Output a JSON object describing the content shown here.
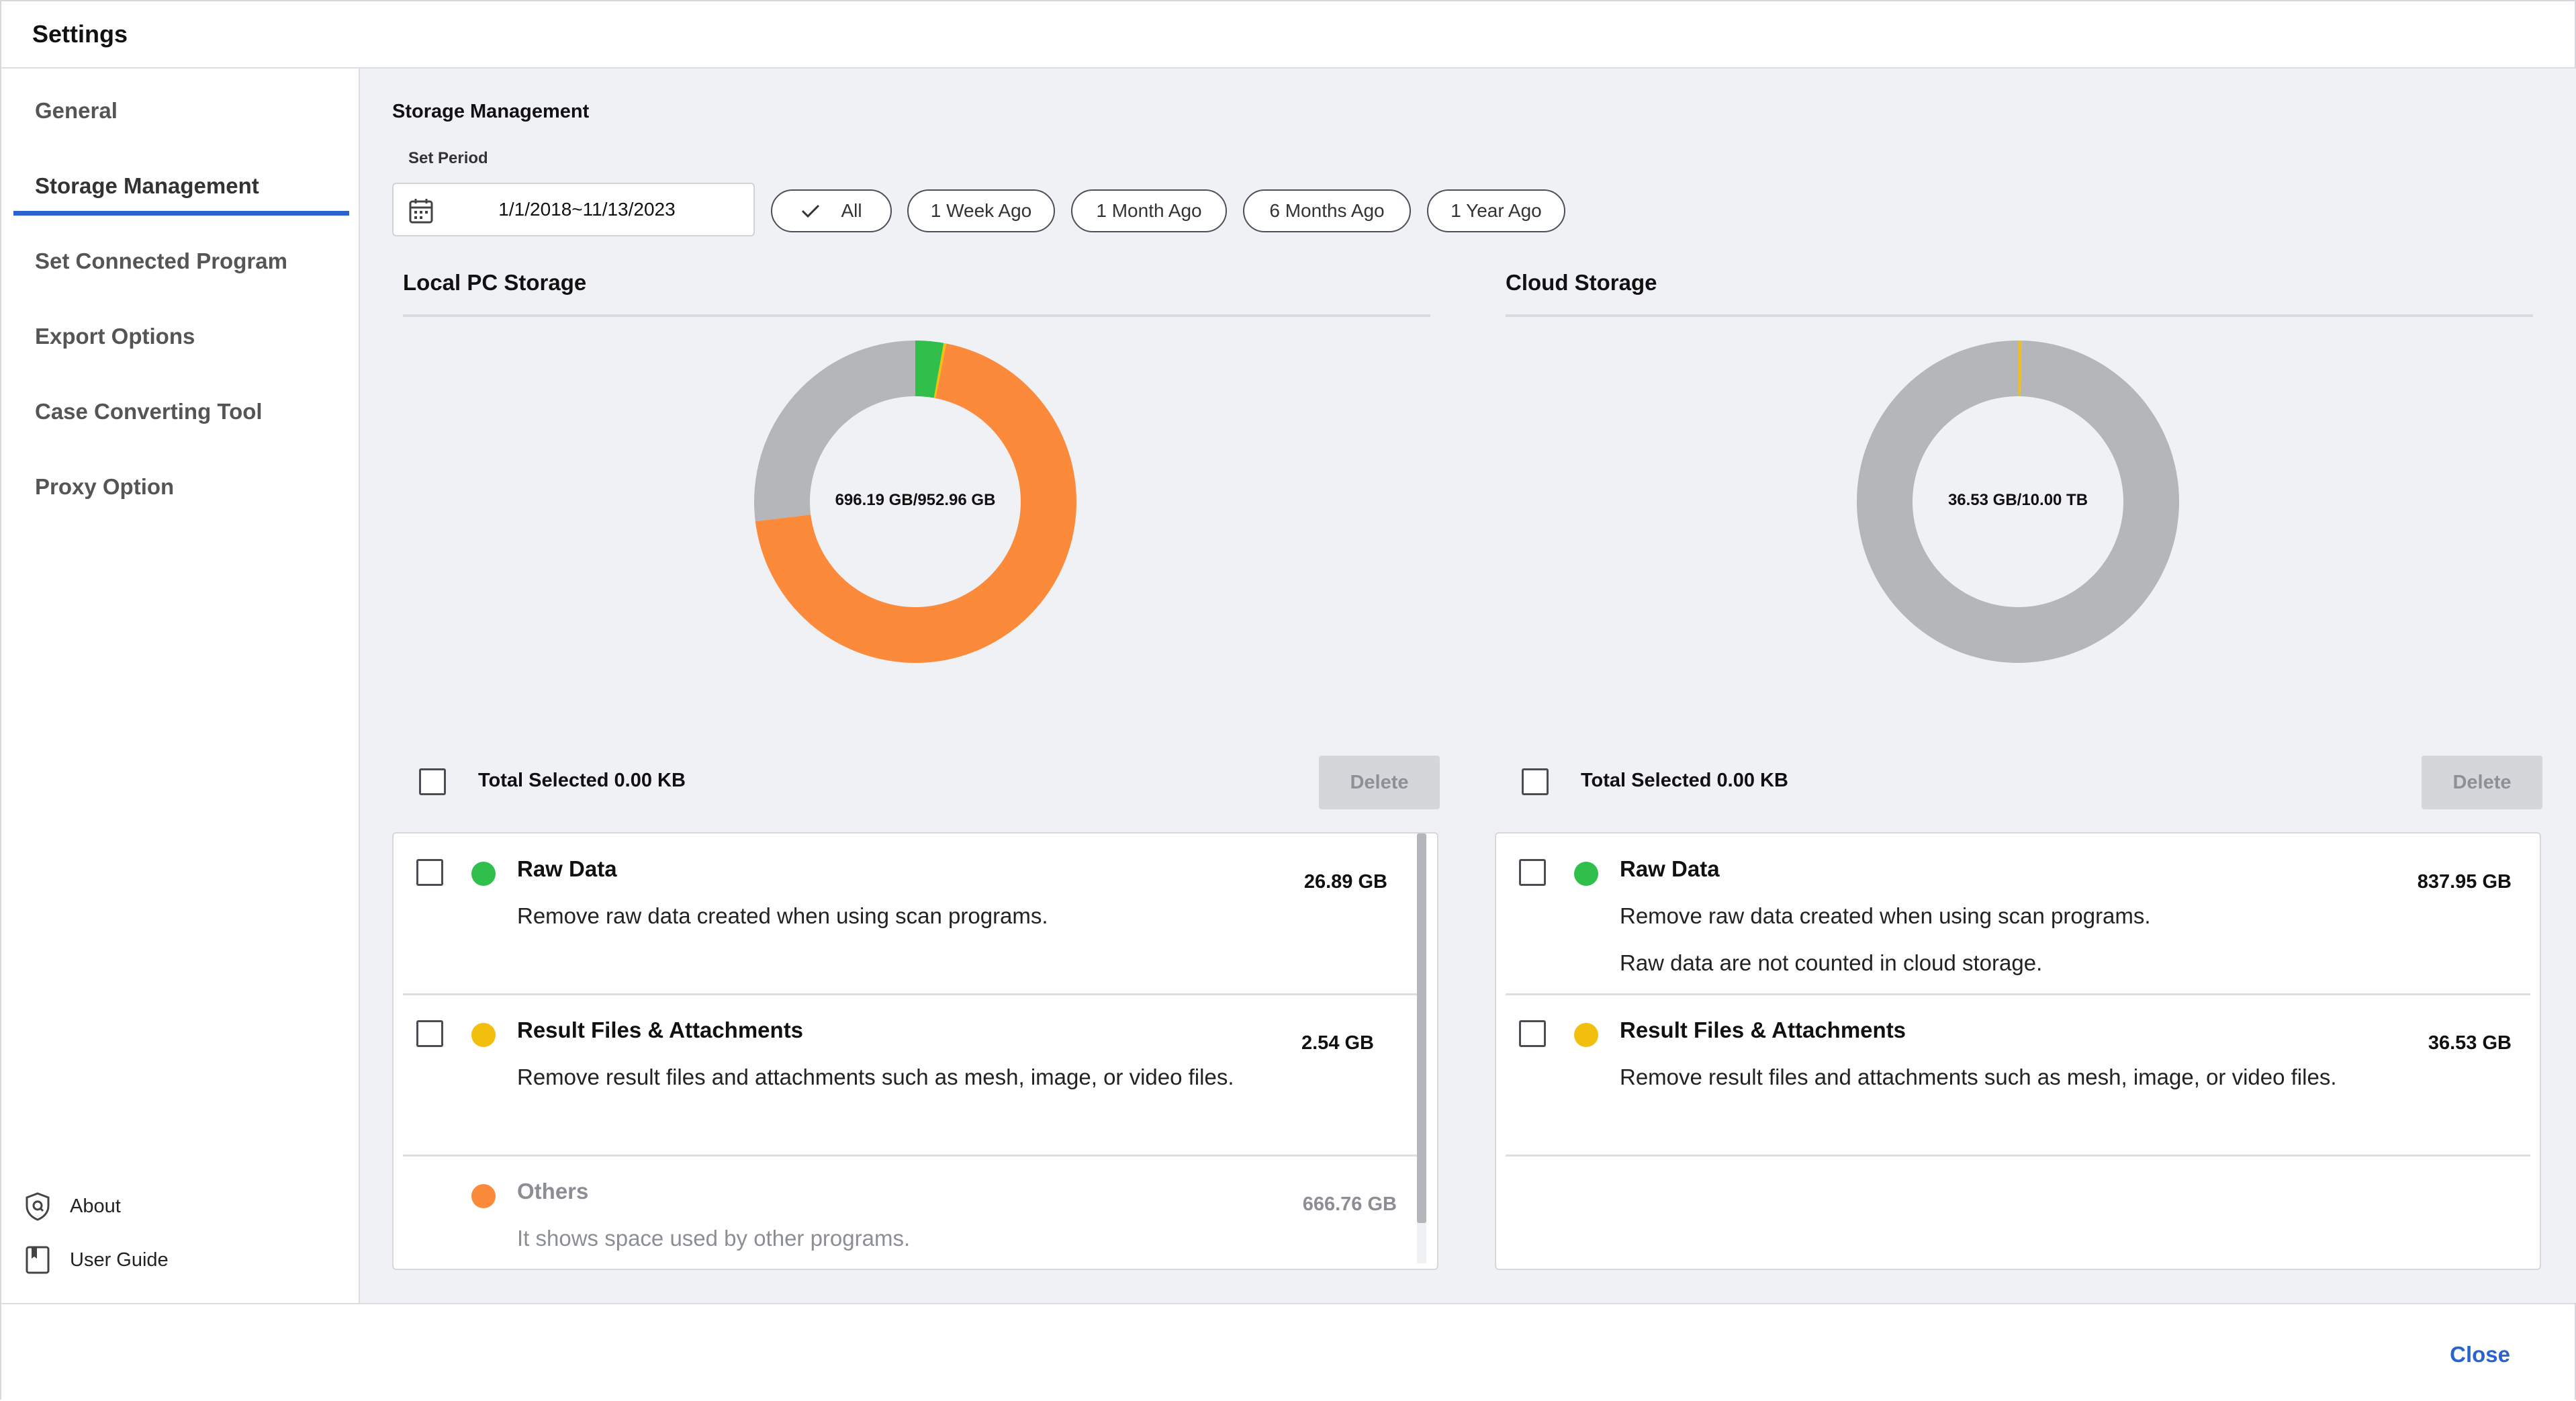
{
  "window": {
    "title": "Settings"
  },
  "sidebar": {
    "items": [
      {
        "label": "General"
      },
      {
        "label": "Storage Management"
      },
      {
        "label": "Set Connected Program"
      },
      {
        "label": "Export Options"
      },
      {
        "label": "Case Converting Tool"
      },
      {
        "label": "Proxy Option"
      }
    ],
    "active_index": 1,
    "footer": [
      {
        "label": "About",
        "icon": "shield-icon"
      },
      {
        "label": "User Guide",
        "icon": "book-icon"
      }
    ]
  },
  "main": {
    "title": "Storage Management",
    "period": {
      "label": "Set Period",
      "value": "1/1/2018~11/13/2023",
      "filters": [
        "All",
        "1 Week Ago",
        "1 Month Ago",
        "6 Months Ago",
        "1 Year Ago"
      ],
      "selected_filter": "All"
    },
    "local": {
      "title": "Local PC Storage",
      "usage_label": "696.19 GB/952.96 GB",
      "total_selected": "Total Selected 0.00 KB",
      "delete_label": "Delete",
      "items": [
        {
          "name": "Raw Data",
          "desc": "Remove raw data created when using scan programs.",
          "size": "26.89 GB",
          "color": "#2fbf4a"
        },
        {
          "name": "Result Files & Attachments",
          "desc": "Remove result files and attachments such as mesh, image, or video files.",
          "size": "2.54 GB",
          "color": "#f2bf0e"
        },
        {
          "name": "Others",
          "desc": "It shows space used by other programs.",
          "size": "666.76 GB",
          "color": "#fb8a3b"
        }
      ]
    },
    "cloud": {
      "title": "Cloud Storage",
      "usage_label": "36.53 GB/10.00 TB",
      "total_selected": "Total Selected 0.00 KB",
      "delete_label": "Delete",
      "items": [
        {
          "name": "Raw Data",
          "desc": "Remove raw data created when using scan programs.",
          "desc2": "Raw data are not counted in cloud storage.",
          "size": "837.95 GB",
          "color": "#2fbf4a"
        },
        {
          "name": "Result Files & Attachments",
          "desc": "Remove result files and attachments such as mesh, image, or video files.",
          "size": "36.53 GB",
          "color": "#f2bf0e"
        }
      ]
    }
  },
  "footer": {
    "close_label": "Close"
  },
  "chart_data": [
    {
      "type": "pie",
      "title": "Local PC Storage",
      "center_label": "696.19 GB/952.96 GB",
      "total": 952.96,
      "slices": [
        {
          "name": "Raw Data",
          "value": 26.89,
          "color": "#2fbf4a"
        },
        {
          "name": "Result Files & Attachments",
          "value": 2.54,
          "color": "#f2bf0e"
        },
        {
          "name": "Others",
          "value": 666.76,
          "color": "#fb8a3b"
        }
      ],
      "remainder_color": "#b5b6b9"
    },
    {
      "type": "pie",
      "title": "Cloud Storage",
      "center_label": "36.53 GB/10.00 TB",
      "total": 10240,
      "slices": [
        {
          "name": "Result Files & Attachments",
          "value": 36.53,
          "color": "#f2bf0e"
        }
      ],
      "remainder_color": "#b5b6b9"
    }
  ]
}
